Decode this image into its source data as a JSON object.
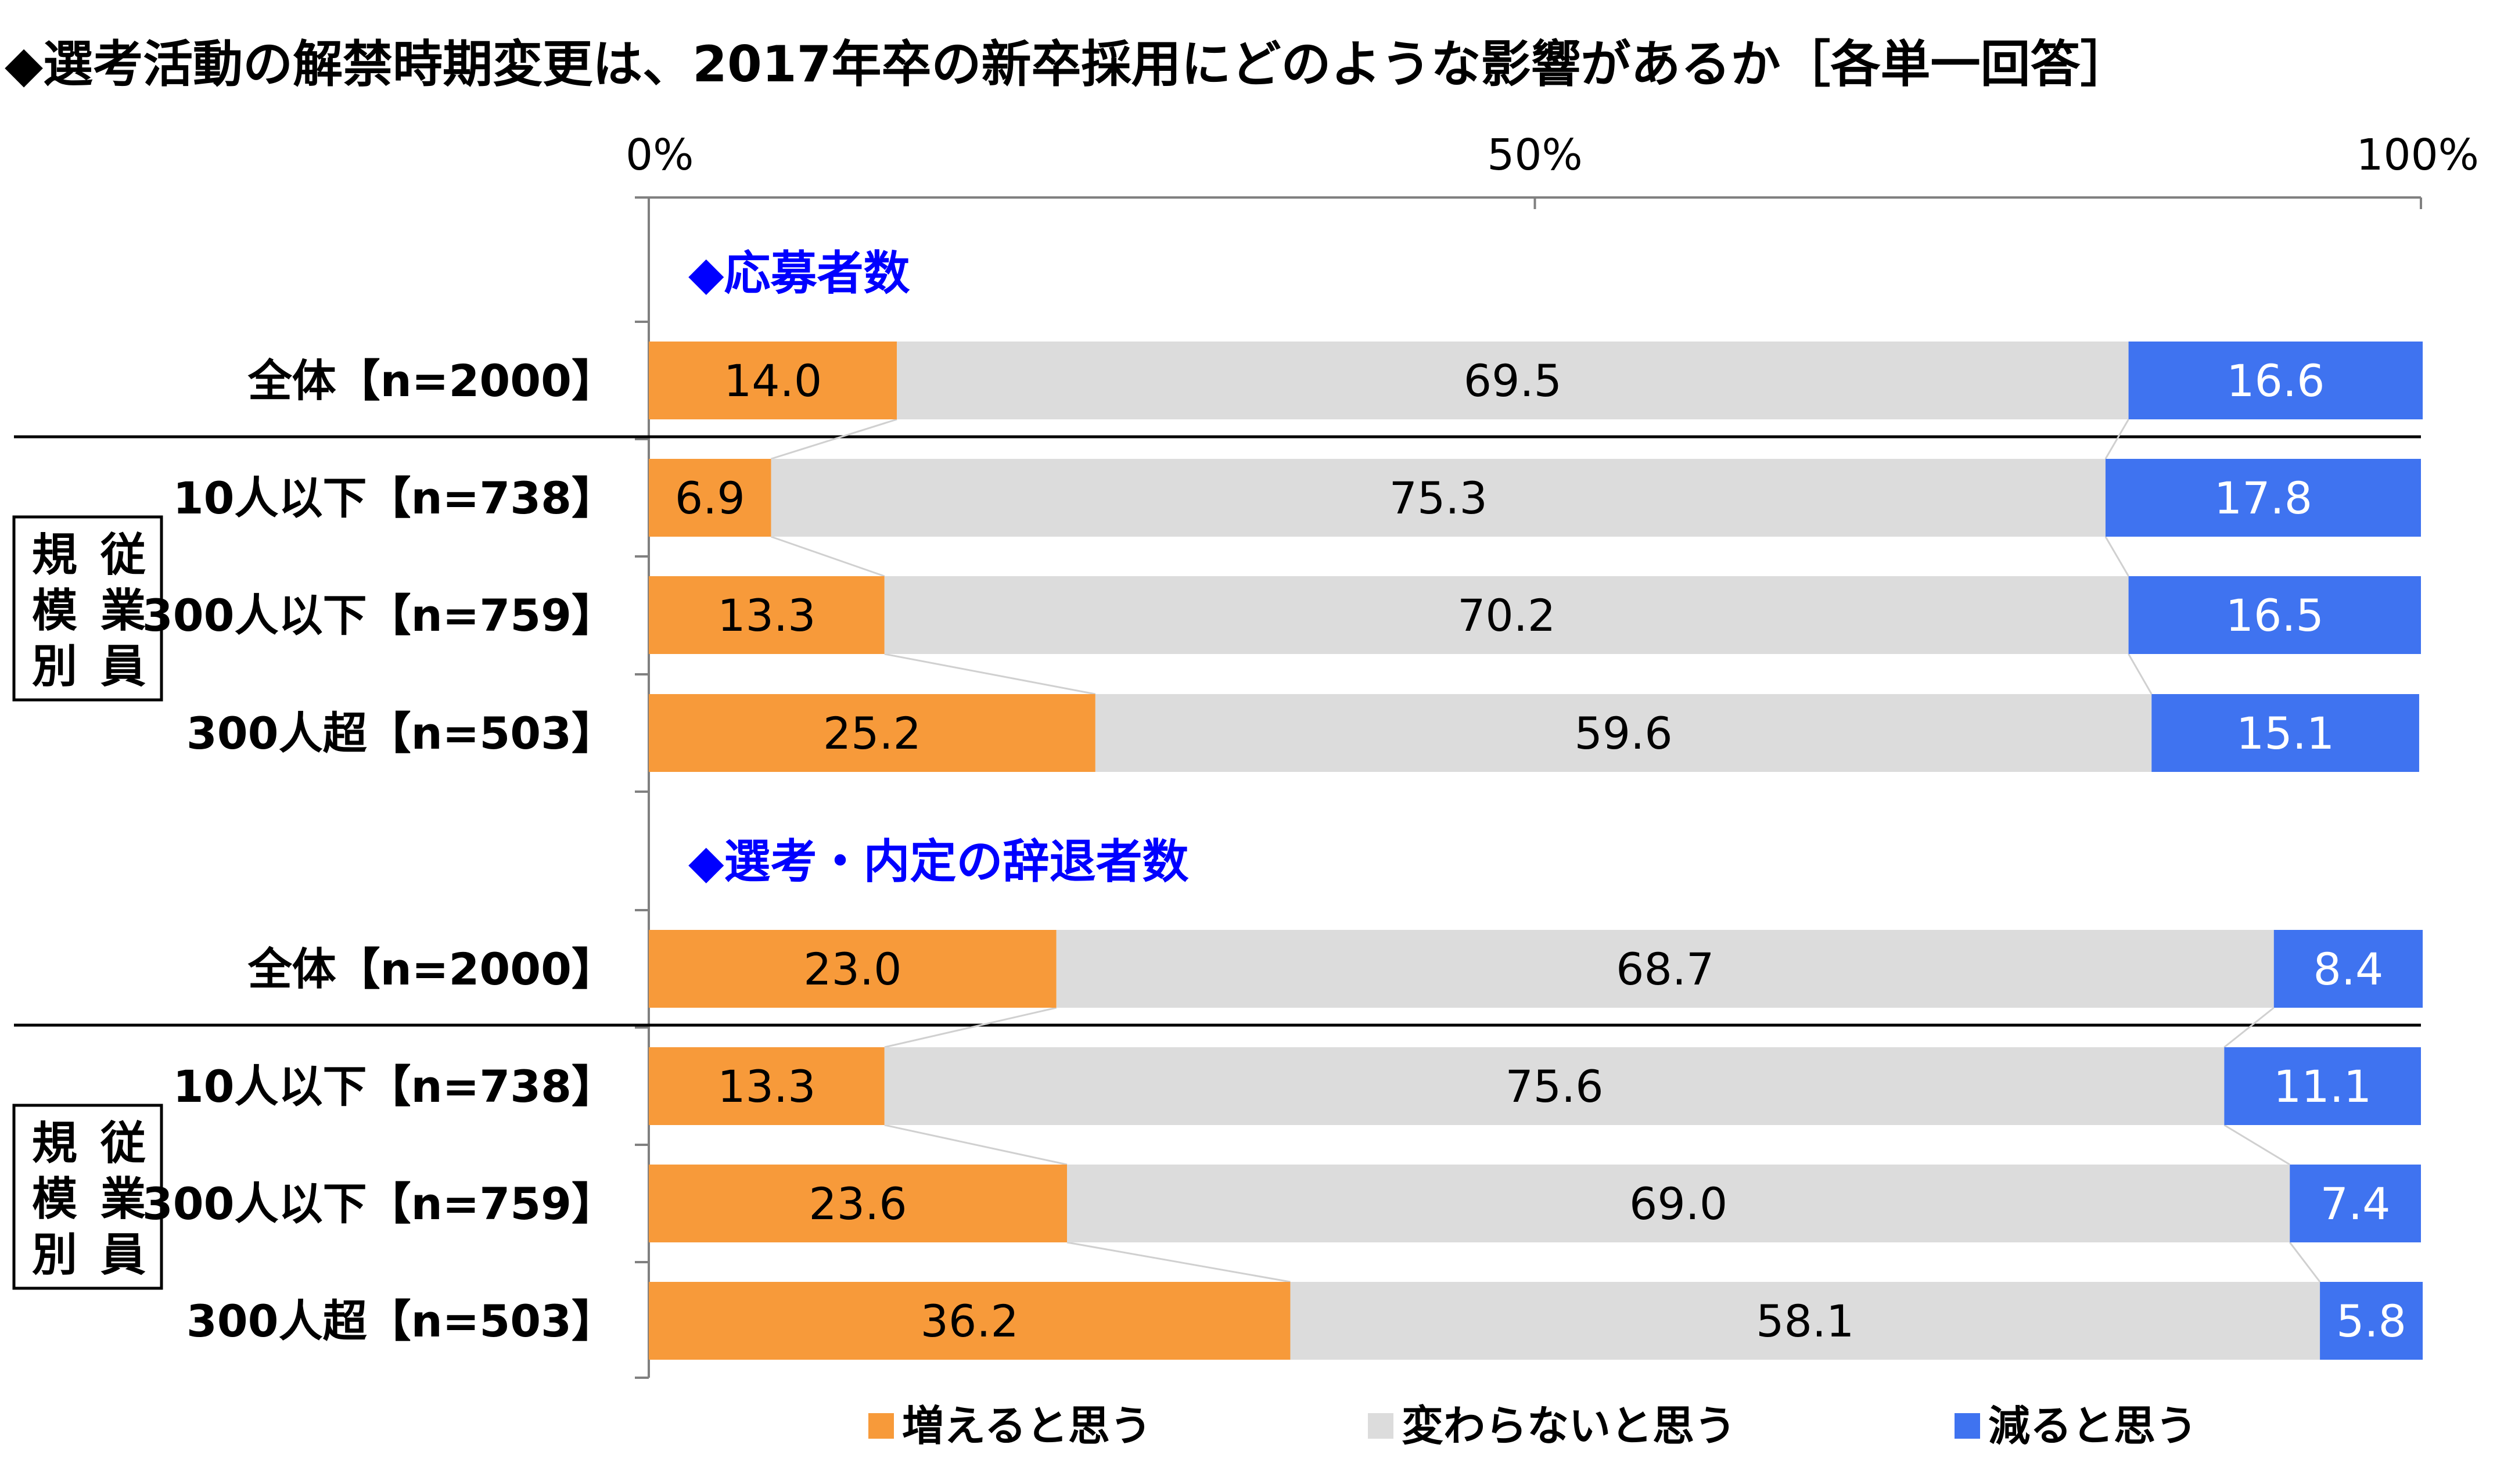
{
  "chart_data": {
    "type": "bar",
    "stacked": "percent",
    "orientation": "horizontal",
    "title": "◆選考活動の解禁時期変更は、2017年卒の新卒採用にどのような影響があるか［各単一回答］",
    "x_ticks": [
      "0%",
      "50%",
      "100%"
    ],
    "xlim": [
      0,
      100
    ],
    "legend": {
      "placement": "bottom"
    },
    "series": [
      {
        "name": "増えると思う",
        "color": "#F79A3A"
      },
      {
        "name": "変わらないと思う",
        "color": "#DCDCDC"
      },
      {
        "name": "減ると思う",
        "color": "#3F73F0"
      }
    ],
    "group_label": [
      "規",
      "従",
      "模",
      "業",
      "別",
      "員"
    ],
    "sections": [
      {
        "title": "◆応募者数",
        "rows": [
          {
            "label": "全体【n=2000】",
            "values": [
              14.0,
              69.5,
              16.6
            ],
            "labels": [
              "14.0",
              "69.5",
              "16.6"
            ]
          },
          {
            "label": "10人以下【n=738】",
            "values": [
              6.9,
              75.3,
              17.8
            ],
            "labels": [
              "6.9",
              "75.3",
              "17.8"
            ]
          },
          {
            "label": "300人以下【n=759】",
            "values": [
              13.3,
              70.2,
              16.5
            ],
            "labels": [
              "13.3",
              "70.2",
              "16.5"
            ]
          },
          {
            "label": "300人超【n=503】",
            "values": [
              25.2,
              59.6,
              15.1
            ],
            "labels": [
              "25.2",
              "59.6",
              "15.1"
            ]
          }
        ]
      },
      {
        "title": "◆選考・内定の辞退者数",
        "rows": [
          {
            "label": "全体【n=2000】",
            "values": [
              23.0,
              68.7,
              8.4
            ],
            "labels": [
              "23.0",
              "68.7",
              "8.4"
            ]
          },
          {
            "label": "10人以下【n=738】",
            "values": [
              13.3,
              75.6,
              11.1
            ],
            "labels": [
              "13.3",
              "75.6",
              "11.1"
            ]
          },
          {
            "label": "300人以下【n=759】",
            "values": [
              23.6,
              69.0,
              7.4
            ],
            "labels": [
              "23.6",
              "69.0",
              "7.4"
            ]
          },
          {
            "label": "300人超【n=503】",
            "values": [
              36.2,
              58.1,
              5.8
            ],
            "labels": [
              "36.2",
              "58.1",
              "5.8"
            ]
          }
        ]
      }
    ],
    "value_label_colors": [
      "#000000",
      "#000000",
      "#FFFFFF"
    ]
  }
}
